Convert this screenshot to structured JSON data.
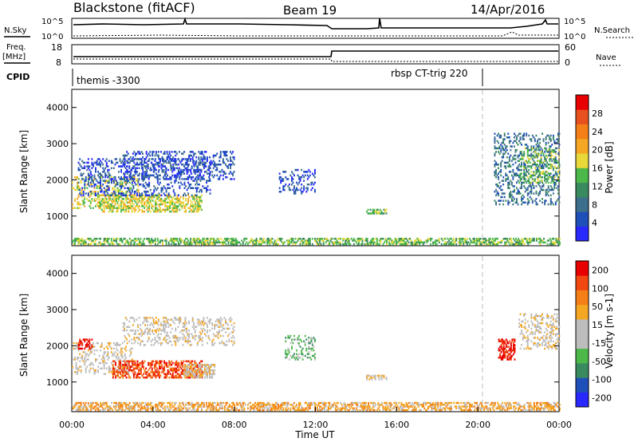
{
  "header": {
    "title": "Blackstone (fitACF)",
    "beam": "Beam 19",
    "date": "14/Apr/2016"
  },
  "strip": {
    "nsky_label": "N.Sky",
    "nsearch_label": "N.Search",
    "freq_label": "Freq.",
    "mhz_label": "[MHz]",
    "nave_label": "Nave",
    "cpid_label": "CPID",
    "noise_ticks": [
      "10^5",
      "10^0"
    ],
    "freq_ticks": [
      "18",
      "8"
    ],
    "nave_ticks": [
      "60",
      "0"
    ],
    "cpid_segments": [
      "themis -3300",
      "rbsp CT-trig 220"
    ]
  },
  "colors": {
    "power": [
      "#2828ff",
      "#1f4fb8",
      "#3d6e8c",
      "#3a8a60",
      "#4cb84a",
      "#e8d83a",
      "#f5a623",
      "#f57f17",
      "#e8501e",
      "#e80000"
    ],
    "velocity": [
      "#e80000",
      "#f04810",
      "#f57f17",
      "#f5a623",
      "#bdbdbd",
      "#bdbdbd",
      "#4cb84a",
      "#3a8a60",
      "#1f4fb8",
      "#2828ff"
    ]
  },
  "chart_data": [
    {
      "type": "heatmap",
      "panel": "power",
      "ylabel": "Slant Range [km]",
      "xlabel": "",
      "xlim": [
        0,
        24
      ],
      "ylim": [
        180,
        4500
      ],
      "yticks": [
        "1000",
        "2000",
        "3000",
        "4000"
      ],
      "colorbar": {
        "label": "Power [dB]",
        "range": [
          0,
          32
        ],
        "tick_labels": [
          "4",
          "8",
          "12",
          "16",
          "20",
          "24",
          "28"
        ]
      },
      "echo_regions": [
        {
          "t0": 0.0,
          "t1": 3.3,
          "r0": 1200,
          "r1": 2100,
          "value_level": 5
        },
        {
          "t0": 1.2,
          "t1": 6.4,
          "r0": 1100,
          "r1": 1600,
          "value_level": 5
        },
        {
          "t0": 0.3,
          "t1": 6.8,
          "r0": 1550,
          "r1": 2600,
          "value_level": 1
        },
        {
          "t0": 2.5,
          "t1": 8.0,
          "r0": 2000,
          "r1": 2800,
          "value_level": 1
        },
        {
          "t0": 10.2,
          "t1": 12.0,
          "r0": 1600,
          "r1": 2300,
          "value_level": 1
        },
        {
          "t0": 14.5,
          "t1": 15.5,
          "r0": 1050,
          "r1": 1200,
          "value_level": 4
        },
        {
          "t0": 20.8,
          "t1": 24.0,
          "r0": 1300,
          "r1": 3300,
          "value_level": 2
        },
        {
          "t0": 22.0,
          "t1": 24.0,
          "r0": 1900,
          "r1": 2900,
          "value_level": 4
        },
        {
          "t0": 0.0,
          "t1": 24.0,
          "r0": 200,
          "r1": 400,
          "value_level": 4
        }
      ]
    },
    {
      "type": "heatmap",
      "panel": "velocity",
      "ylabel": "Slant Range [km]",
      "xlabel": "Time UT",
      "xlim": [
        0,
        24
      ],
      "ylim": [
        180,
        4500
      ],
      "yticks": [
        "1000",
        "2000",
        "3000",
        "4000"
      ],
      "xtick_labels": [
        "00:00",
        "04:00",
        "08:00",
        "12:00",
        "16:00",
        "20:00",
        "00:00"
      ],
      "colorbar": {
        "label": "Velocity [m s-1]",
        "range": [
          -250,
          250
        ],
        "tick_labels": [
          "200",
          "100",
          "50",
          "15",
          "-15",
          "-50",
          "-100",
          "-200"
        ]
      },
      "echo_regions": [
        {
          "t0": 0.0,
          "t1": 3.0,
          "r0": 1200,
          "r1": 2100,
          "value_level": 4
        },
        {
          "t0": 0.3,
          "t1": 1.0,
          "r0": 1900,
          "r1": 2200,
          "value_level": 0
        },
        {
          "t0": 2.0,
          "t1": 6.4,
          "r0": 1100,
          "r1": 1600,
          "value_level": 1
        },
        {
          "t0": 5.5,
          "t1": 7.0,
          "r0": 1100,
          "r1": 1500,
          "value_level": 4
        },
        {
          "t0": 2.5,
          "t1": 8.0,
          "r0": 2000,
          "r1": 2800,
          "value_level": 4
        },
        {
          "t0": 10.5,
          "t1": 12.0,
          "r0": 1600,
          "r1": 2300,
          "value_level": 6
        },
        {
          "t0": 14.5,
          "t1": 15.5,
          "r0": 1050,
          "r1": 1200,
          "value_level": 4
        },
        {
          "t0": 21.0,
          "t1": 21.8,
          "r0": 1600,
          "r1": 2200,
          "value_level": 0
        },
        {
          "t0": 22.0,
          "t1": 24.0,
          "r0": 1900,
          "r1": 2900,
          "value_level": 4
        },
        {
          "t0": 0.0,
          "t1": 24.0,
          "r0": 200,
          "r1": 450,
          "value_level": 3
        }
      ]
    }
  ]
}
